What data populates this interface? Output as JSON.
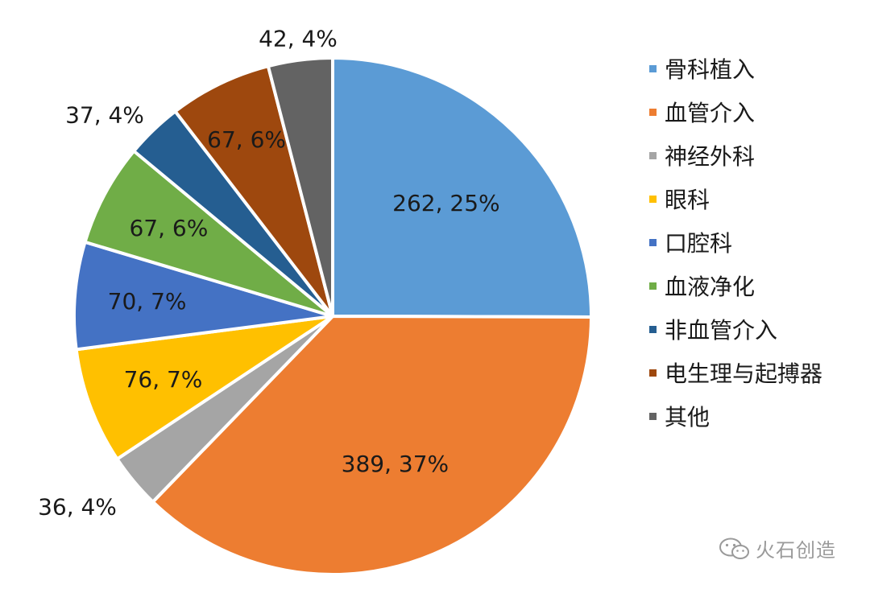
{
  "chart_data": {
    "type": "pie",
    "title": "",
    "categories": [
      "骨科植入",
      "血管介入",
      "神经外科",
      "眼科",
      "口腔科",
      "血液净化",
      "非血管介入",
      "电生理与起搏器",
      "其他"
    ],
    "values": [
      262,
      389,
      36,
      76,
      70,
      67,
      37,
      67,
      42
    ],
    "percent_labels": [
      "25%",
      "37%",
      "4%",
      "7%",
      "7%",
      "6%",
      "4%",
      "6%",
      "4%"
    ],
    "colors": [
      "#5b9bd5",
      "#ed7d31",
      "#a5a5a5",
      "#ffc000",
      "#4472c4",
      "#70ad47",
      "#255e91",
      "#9e480e",
      "#636363"
    ],
    "start_angle_deg": 0,
    "direction": "clockwise",
    "legend_position": "right"
  },
  "watermark": {
    "icon": "wechat-icon",
    "text": "火石创造"
  }
}
